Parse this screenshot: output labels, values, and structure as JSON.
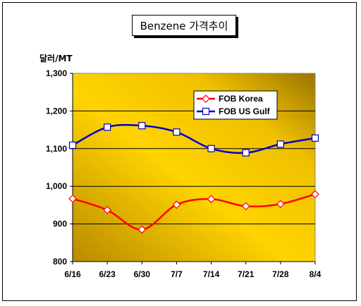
{
  "chart_data": {
    "type": "line",
    "title": "Benzene 가격추이",
    "ylabel": "달러/MT",
    "categories": [
      "6/16",
      "6/23",
      "6/30",
      "7/7",
      "7/14",
      "7/21",
      "7/28",
      "8/4"
    ],
    "ylim": [
      800,
      1300
    ],
    "yticks": [
      "1,300",
      "1,200",
      "1,100",
      "1,000",
      "900",
      "800"
    ],
    "grid": true,
    "legend_position": "top-right",
    "series": [
      {
        "name": "FOB Korea",
        "color": "#ff0000",
        "marker": "diamond",
        "values": [
          967,
          937,
          885,
          951,
          966,
          947,
          953,
          979
        ]
      },
      {
        "name": "FOB US Gulf",
        "color": "#0000cc",
        "marker": "square",
        "values": [
          1109,
          1157,
          1161,
          1144,
          1100,
          1089,
          1112,
          1128
        ]
      }
    ]
  }
}
